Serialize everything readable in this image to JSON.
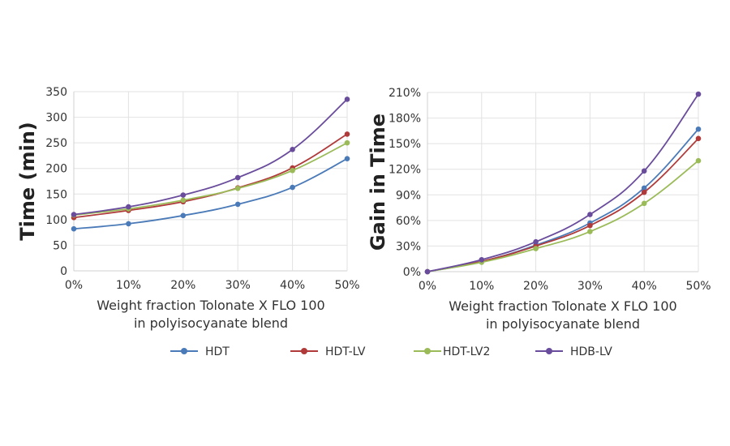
{
  "chart_data": [
    {
      "type": "line",
      "title": "",
      "xlabel": "Weight fraction Tolonate X FLO 100 in polyisocyanate blend",
      "xlabel_lines": [
        "Weight fraction Tolonate X FLO 100",
        "in polyisocyanate blend"
      ],
      "ylabel": "Time (min)",
      "categories": [
        "0%",
        "10%",
        "20%",
        "30%",
        "40%",
        "50%"
      ],
      "ylim": [
        0,
        350
      ],
      "yticks": [
        0,
        50,
        100,
        150,
        200,
        250,
        300,
        350
      ],
      "ytick_labels": [
        "0",
        "50",
        "100",
        "150",
        "200",
        "250",
        "300",
        "350"
      ],
      "grid": true,
      "smooth": true,
      "series": [
        {
          "name": "HDT",
          "color": "#4a7ab8",
          "values": [
            82,
            92,
            108,
            130,
            163,
            219
          ]
        },
        {
          "name": "HDT-LV",
          "color": "#b03a3a",
          "values": [
            104,
            118,
            135,
            162,
            201,
            267
          ]
        },
        {
          "name": "HDT-LV2",
          "color": "#9bbb59",
          "values": [
            109,
            121,
            138,
            161,
            196,
            250
          ]
        },
        {
          "name": "HDB-LV",
          "color": "#6a4c9c",
          "values": [
            110,
            125,
            148,
            182,
            237,
            335
          ]
        }
      ]
    },
    {
      "type": "line",
      "title": "",
      "xlabel": "Weight fraction Tolonate X FLO 100 in polyisocyanate blend",
      "xlabel_lines": [
        "Weight fraction Tolonate X FLO 100",
        "in polyisocyanate blend"
      ],
      "ylabel": "Gain in Time",
      "categories": [
        "0%",
        "10%",
        "20%",
        "30%",
        "40%",
        "50%"
      ],
      "ylim": [
        0,
        210
      ],
      "yticks": [
        0,
        30,
        60,
        90,
        120,
        150,
        180,
        210
      ],
      "ytick_labels": [
        "0%",
        "30%",
        "60%",
        "90%",
        "120%",
        "150%",
        "180%",
        "210%"
      ],
      "grid": true,
      "smooth": true,
      "series": [
        {
          "name": "HDT",
          "color": "#4a7ab8",
          "values": [
            0,
            12,
            31,
            57,
            98,
            167
          ]
        },
        {
          "name": "HDT-LV",
          "color": "#b03a3a",
          "values": [
            0,
            12,
            30,
            54,
            93,
            156
          ]
        },
        {
          "name": "HDT-LV2",
          "color": "#9bbb59",
          "values": [
            0,
            11,
            27,
            47,
            80,
            130
          ]
        },
        {
          "name": "HDB-LV",
          "color": "#6a4c9c",
          "values": [
            0,
            14,
            35,
            67,
            118,
            208
          ]
        }
      ]
    }
  ],
  "legend": {
    "placement": "bottom-center",
    "items": [
      {
        "label": "HDT",
        "color": "#4a7ab8"
      },
      {
        "label": "HDT-LV",
        "color": "#b03a3a"
      },
      {
        "label": "HDT-LV2",
        "color": "#9bbb59"
      },
      {
        "label": "HDB-LV",
        "color": "#6a4c9c"
      }
    ]
  }
}
